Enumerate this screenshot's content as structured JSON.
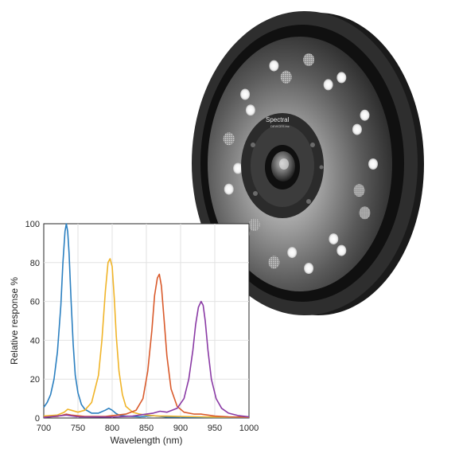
{
  "product": {
    "brand_text": "Spectral",
    "brand_sub_text": "DEVICES inc"
  },
  "colors": {
    "blue": "#2a7fc0",
    "yellow": "#f0b428",
    "orange": "#d95a2b",
    "purple": "#8a3aa5"
  },
  "chart_data": {
    "type": "line",
    "title": "",
    "xlabel": "Wavelength (nm)",
    "ylabel": "Relative response %",
    "xlim": [
      700,
      1000
    ],
    "ylim": [
      0,
      100
    ],
    "xticks": [
      700,
      750,
      800,
      850,
      900,
      950,
      1000
    ],
    "yticks": [
      0,
      20,
      40,
      60,
      80,
      100
    ],
    "grid": true,
    "legend": "none",
    "series": [
      {
        "color": "#2a7fc0",
        "x": [
          700,
          705,
          710,
          715,
          720,
          725,
          728,
          731,
          733,
          735,
          737,
          740,
          743,
          746,
          750,
          755,
          760,
          770,
          780,
          790,
          795,
          800,
          805,
          810,
          820,
          840,
          860,
          870,
          880,
          900,
          950,
          1000
        ],
        "y": [
          5.5,
          8,
          12,
          20,
          34,
          58,
          80,
          96,
          100,
          96,
          85,
          60,
          38,
          22,
          13,
          7,
          4.5,
          2.5,
          2.5,
          4,
          5,
          4,
          2.5,
          1.5,
          1,
          0.6,
          1.2,
          0.8,
          0.5,
          0.4,
          0.3,
          0.3
        ]
      },
      {
        "color": "#f0b428",
        "x": [
          700,
          720,
          730,
          735,
          740,
          750,
          760,
          770,
          780,
          785,
          790,
          794,
          797,
          800,
          803,
          806,
          810,
          815,
          820,
          830,
          840,
          850,
          860,
          870,
          880,
          900,
          930,
          950,
          1000
        ],
        "y": [
          1,
          1.5,
          3,
          4.5,
          4,
          3,
          4,
          8,
          22,
          40,
          65,
          80,
          82,
          78,
          62,
          42,
          24,
          12,
          6,
          3,
          2,
          1.5,
          1.2,
          1,
          1,
          0.8,
          0.6,
          0.5,
          0.4
        ]
      },
      {
        "color": "#d95a2b",
        "x": [
          700,
          720,
          733,
          740,
          760,
          790,
          800,
          820,
          835,
          845,
          852,
          858,
          862,
          866,
          869,
          872,
          876,
          880,
          886,
          895,
          905,
          920,
          930,
          940,
          950,
          970,
          1000
        ],
        "y": [
          0.5,
          0.8,
          2,
          1.5,
          0.8,
          0.8,
          1.2,
          2,
          4,
          10,
          24,
          45,
          63,
          72,
          74,
          68,
          50,
          32,
          15,
          6,
          3,
          2,
          2,
          1.5,
          1,
          0.6,
          0.4
        ]
      },
      {
        "color": "#8a3aa5",
        "x": [
          700,
          733,
          750,
          800,
          830,
          850,
          860,
          870,
          880,
          895,
          905,
          912,
          918,
          922,
          926,
          930,
          933,
          936,
          940,
          945,
          952,
          960,
          970,
          985,
          1000
        ],
        "y": [
          0.3,
          1.5,
          0.6,
          0.5,
          1,
          2,
          2.5,
          3.5,
          3,
          5,
          10,
          20,
          35,
          48,
          57,
          60,
          58,
          50,
          35,
          20,
          10,
          5,
          2.5,
          1.2,
          0.6
        ]
      }
    ]
  }
}
